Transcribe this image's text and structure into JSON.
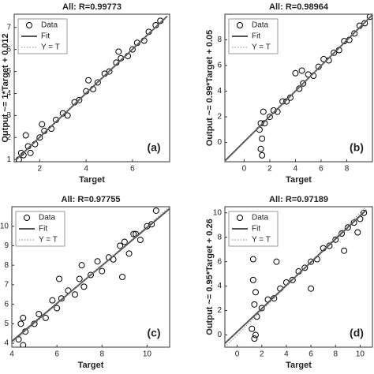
{
  "chart_data": [
    {
      "type": "scatter",
      "title": "All: R=0.99773",
      "xlabel": "Target",
      "ylabel": "Output ~= 1*Target + 0.012",
      "label": "(a)",
      "xlim": [
        0.9,
        7.6
      ],
      "ylim": [
        0.9,
        7.6
      ],
      "xticks": [
        2,
        4,
        6
      ],
      "yticks": [
        1,
        2,
        3,
        4,
        5,
        6,
        7
      ],
      "series": [
        {
          "name": "Data",
          "color": "#000000",
          "x": [
            1.1,
            1.2,
            1.3,
            1.5,
            1.4,
            1.8,
            2.0,
            2.2,
            2.5,
            2.7,
            3.0,
            3.2,
            3.5,
            3.7,
            4.0,
            4.1,
            4.3,
            4.5,
            4.8,
            5.0,
            5.3,
            5.5,
            5.8,
            6.0,
            6.2,
            6.5,
            6.7,
            7.0,
            7.2,
            1.6,
            2.1,
            5.4
          ],
          "values": [
            1.0,
            1.3,
            1.2,
            1.6,
            2.1,
            1.7,
            2.0,
            2.3,
            2.4,
            2.8,
            3.1,
            3.0,
            3.6,
            3.7,
            4.1,
            4.6,
            4.2,
            4.5,
            4.9,
            5.0,
            5.4,
            5.6,
            5.7,
            6.0,
            6.3,
            6.4,
            6.8,
            7.1,
            7.3,
            1.3,
            2.6,
            5.9
          ]
        },
        {
          "name": "Fit",
          "color": "#555555",
          "x": [
            1,
            7.5
          ],
          "values": [
            1.012,
            7.512
          ]
        },
        {
          "name": "Y = T",
          "color": "#888888",
          "x": [
            1,
            7.5
          ],
          "values": [
            1,
            7.5
          ]
        }
      ]
    },
    {
      "type": "scatter",
      "title": "All: R=0.98964",
      "xlabel": "Target",
      "ylabel": "Output ~= 0.99*Target + 0.05",
      "label": "(b)",
      "xlim": [
        -1.5,
        10
      ],
      "ylim": [
        -1.5,
        10
      ],
      "xticks": [
        0,
        2,
        4,
        6,
        8
      ],
      "yticks": [
        0,
        2,
        4,
        6,
        8
      ],
      "series": [
        {
          "name": "Data",
          "color": "#000000",
          "x": [
            1.2,
            1.3,
            1.4,
            1.5,
            1.6,
            2.0,
            2.3,
            2.6,
            3.0,
            3.3,
            3.6,
            4.0,
            4.3,
            4.6,
            5.0,
            5.4,
            5.8,
            6.2,
            6.6,
            7.0,
            7.4,
            7.8,
            8.2,
            8.6,
            9.0,
            9.4,
            9.8,
            1.3,
            1.4,
            4.5
          ],
          "values": [
            1.0,
            -0.5,
            0.3,
            2.4,
            1.5,
            2.0,
            2.5,
            2.4,
            3.2,
            3.2,
            3.5,
            5.4,
            4.2,
            4.6,
            5.3,
            5.2,
            5.9,
            6.5,
            6.4,
            7.0,
            7.2,
            7.9,
            8.0,
            8.5,
            9.1,
            9.3,
            9.8,
            1.5,
            -1.0,
            5.6
          ]
        },
        {
          "name": "Fit",
          "color": "#555555",
          "x": [
            -1.5,
            10
          ],
          "values": [
            -1.435,
            9.95
          ]
        },
        {
          "name": "Y = T",
          "color": "#888888",
          "x": [
            -1.5,
            10
          ],
          "values": [
            -1.5,
            10
          ]
        }
      ]
    },
    {
      "type": "scatter",
      "title": "All: R=0.97755",
      "xlabel": "Target",
      "label": "(c)",
      "xlim": [
        4,
        11
      ],
      "ylim": [
        3.8,
        11
      ],
      "xticks": [
        4,
        6,
        8,
        10
      ],
      "yticks": [
        4,
        5,
        6,
        7,
        8,
        9,
        10
      ],
      "series": [
        {
          "name": "Data",
          "color": "#000000",
          "x": [
            4.3,
            4.4,
            4.5,
            4.6,
            5.0,
            5.2,
            5.5,
            5.8,
            6.0,
            6.2,
            6.5,
            6.8,
            7.0,
            7.2,
            7.5,
            7.8,
            8.0,
            8.3,
            8.5,
            8.8,
            9.0,
            9.2,
            9.5,
            9.7,
            10.0,
            10.2,
            10.4,
            4.5,
            6.1,
            8.9,
            9.4,
            7.1
          ],
          "values": [
            4.2,
            5.0,
            3.9,
            4.6,
            5.0,
            5.5,
            5.3,
            6.2,
            5.8,
            6.3,
            6.7,
            6.5,
            7.3,
            6.9,
            7.5,
            8.2,
            7.7,
            8.4,
            8.3,
            9.0,
            9.2,
            8.6,
            9.6,
            9.3,
            10.0,
            10.1,
            10.8,
            5.3,
            7.3,
            7.4,
            9.6,
            8.0
          ]
        },
        {
          "name": "Fit",
          "color": "#555555",
          "x": [
            4,
            11
          ],
          "values": [
            4.1,
            10.9
          ]
        },
        {
          "name": "Y = T",
          "color": "#888888",
          "x": [
            4,
            11
          ],
          "values": [
            4,
            11
          ]
        }
      ]
    },
    {
      "type": "scatter",
      "title": "All: R=0.97189",
      "xlabel": "Target",
      "ylabel": "Output ~= 0.95*Target + 0.26",
      "label": "(d)",
      "xlim": [
        -1,
        11
      ],
      "ylim": [
        -1,
        10.5
      ],
      "xticks": [
        0,
        2,
        4,
        6,
        8,
        10
      ],
      "yticks": [
        0,
        2,
        4,
        6,
        8,
        10
      ],
      "series": [
        {
          "name": "Data",
          "color": "#000000",
          "x": [
            1.2,
            1.3,
            1.4,
            1.5,
            1.6,
            2.0,
            2.5,
            3.0,
            3.5,
            4.0,
            4.5,
            5.0,
            5.5,
            6.0,
            6.5,
            7.0,
            7.5,
            8.0,
            8.5,
            9.0,
            9.5,
            10.0,
            10.3,
            1.3,
            1.4,
            1.5,
            3.2,
            6.0,
            8.7,
            9.8
          ],
          "values": [
            0.5,
            6.2,
            -0.3,
            3.5,
            1.5,
            2.2,
            2.9,
            3.0,
            3.8,
            4.3,
            4.5,
            5.2,
            5.5,
            6.0,
            6.2,
            7.1,
            7.3,
            7.8,
            8.3,
            8.8,
            9.2,
            9.5,
            10.0,
            4.5,
            2.5,
            0.0,
            6.0,
            3.8,
            6.9,
            8.4
          ]
        },
        {
          "name": "Fit",
          "color": "#555555",
          "x": [
            -1,
            10.5
          ],
          "values": [
            -0.69,
            10.235
          ]
        },
        {
          "name": "Y = T",
          "color": "#888888",
          "x": [
            -1,
            10.5
          ],
          "values": [
            -1,
            10.5
          ]
        }
      ]
    }
  ]
}
